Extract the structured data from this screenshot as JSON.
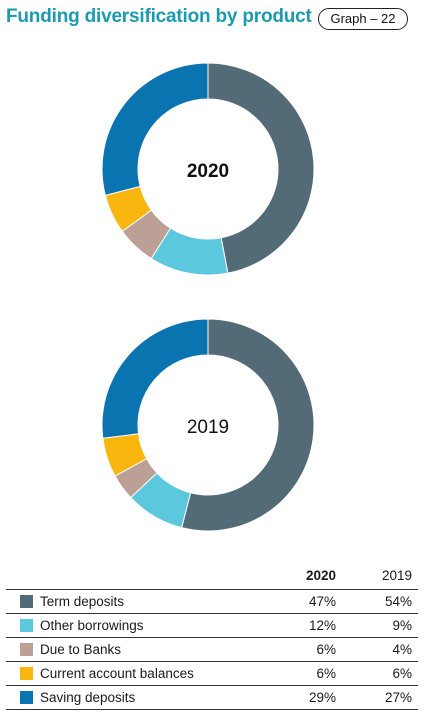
{
  "header": {
    "title": "Funding diversification by product",
    "badge": "Graph – 22"
  },
  "legend_header": {
    "col1": "2020",
    "col2": "2019"
  },
  "chart_data": [
    {
      "type": "pie",
      "title": "2020",
      "categories": [
        "Term deposits",
        "Other borrowings",
        "Due to Banks",
        "Current account balances",
        "Saving deposits"
      ],
      "values": [
        47,
        12,
        6,
        6,
        29
      ],
      "value_labels": [
        "47%",
        "12%",
        "6%",
        "6%",
        "29%"
      ],
      "colors": [
        "#526b77",
        "#5bc8de",
        "#bca096",
        "#f8b60f",
        "#0a74b0"
      ]
    },
    {
      "type": "pie",
      "title": "2019",
      "categories": [
        "Term deposits",
        "Other borrowings",
        "Due to Banks",
        "Current account balances",
        "Saving deposits"
      ],
      "values": [
        54,
        9,
        4,
        6,
        27
      ],
      "value_labels": [
        "54%",
        "9%",
        "4%",
        "6%",
        "27%"
      ],
      "colors": [
        "#526b77",
        "#5bc8de",
        "#bca096",
        "#f8b60f",
        "#0a74b0"
      ]
    }
  ]
}
